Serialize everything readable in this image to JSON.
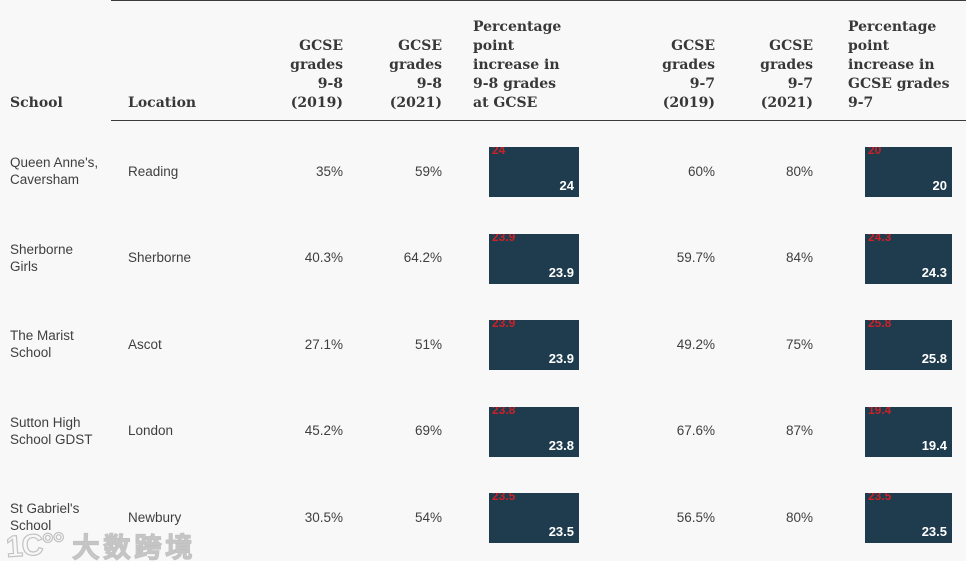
{
  "header": {
    "school": "School",
    "location": "Location",
    "g98_2019": "GCSE grades 9-8 (2019)",
    "g98_2021": "GCSE grades 9-8 (2021)",
    "pp_98": "Percentage point increase in 9-8 grades at GCSE",
    "g97_2019": "GCSE grades 9-7 (2019)",
    "g97_2021": "GCSE grades 9-7 (2021)",
    "pp_97": "Percentage point increase in GCSE grades 9-7"
  },
  "rows": [
    {
      "school": "Queen Anne's, Caversham",
      "location": "Reading",
      "g98_2019": "35%",
      "g98_2021": "59%",
      "pp_98": "24",
      "g97_2019": "60%",
      "g97_2021": "80%",
      "pp_97": "20"
    },
    {
      "school": "Sherborne Girls",
      "location": "Sherborne",
      "g98_2019": "40.3%",
      "g98_2021": "64.2%",
      "pp_98": "23.9",
      "g97_2019": "59.7%",
      "g97_2021": "84%",
      "pp_97": "24.3"
    },
    {
      "school": "The Marist School",
      "location": "Ascot",
      "g98_2019": "27.1%",
      "g98_2021": "51%",
      "pp_98": "23.9",
      "g97_2019": "49.2%",
      "g97_2021": "75%",
      "pp_97": "25.8"
    },
    {
      "school": "Sutton High School GDST",
      "location": "London",
      "g98_2019": "45.2%",
      "g98_2021": "69%",
      "pp_98": "23.8",
      "g97_2019": "67.6%",
      "g97_2021": "87%",
      "pp_97": "19.4"
    },
    {
      "school": "St Gabriel's School",
      "location": "Newbury",
      "g98_2019": "30.5%",
      "g98_2021": "54%",
      "pp_98": "23.5",
      "g97_2019": "56.5%",
      "g97_2021": "80%",
      "pp_97": "23.5"
    }
  ],
  "colors": {
    "background": "#f8f8f8",
    "bar_fill": "#1e3c4d",
    "bar_label_top_red": "#cc2127",
    "bar_label_bottom_white": "#ffffff",
    "header_text": "#383838",
    "body_text": "#3f3f3f",
    "rule": "#3b3b3b"
  },
  "watermark": {
    "logo": "1C°°",
    "text": "大数跨境"
  },
  "chart_data": {
    "type": "table",
    "title": "",
    "columns": [
      "School",
      "Location",
      "GCSE grades 9-8 (2019)",
      "GCSE grades 9-8 (2021)",
      "Percentage point increase in 9-8 grades at GCSE",
      "GCSE grades 9-7 (2019)",
      "GCSE grades 9-7 (2021)",
      "Percentage point increase in GCSE grades 9-7"
    ],
    "bar_columns": [
      "Percentage point increase in 9-8 grades at GCSE",
      "Percentage point increase in GCSE grades 9-7"
    ],
    "rows": [
      [
        "Queen Anne's, Caversham",
        "Reading",
        "35%",
        "59%",
        24,
        "60%",
        "80%",
        20
      ],
      [
        "Sherborne Girls",
        "Sherborne",
        "40.3%",
        "64.2%",
        23.9,
        "59.7%",
        "84%",
        24.3
      ],
      [
        "The Marist School",
        "Ascot",
        "27.1%",
        "51%",
        23.9,
        "49.2%",
        "75%",
        25.8
      ],
      [
        "Sutton High School GDST",
        "London",
        "45.2%",
        "69%",
        23.8,
        "67.6%",
        "87%",
        19.4
      ],
      [
        "St Gabriel's School",
        "Newbury",
        "30.5%",
        "54%",
        23.5,
        "56.5%",
        "80%",
        23.5
      ]
    ],
    "series": [
      {
        "name": "Percentage point increase in 9-8 grades at GCSE",
        "values": [
          24,
          23.9,
          23.9,
          23.8,
          23.5
        ]
      },
      {
        "name": "Percentage point increase in GCSE grades 9-7",
        "values": [
          20,
          24.3,
          25.8,
          19.4,
          23.5
        ]
      }
    ],
    "legend_position": "none",
    "grid": false
  }
}
